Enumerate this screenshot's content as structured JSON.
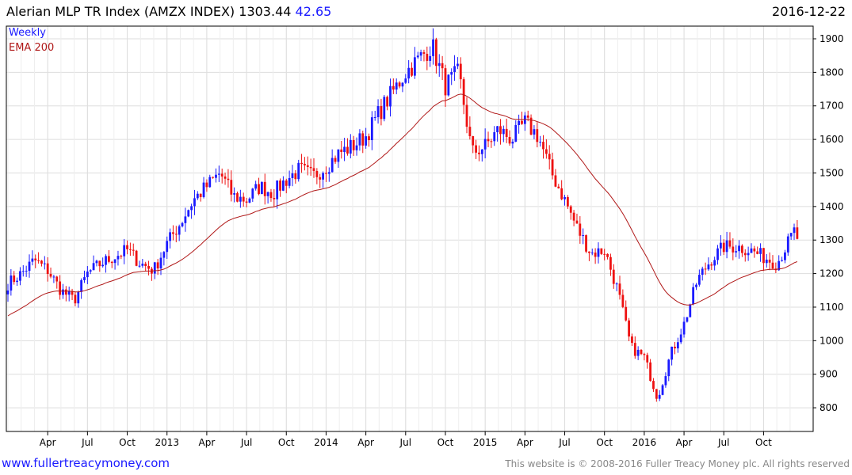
{
  "header": {
    "title": "Alerian MLP TR Index (AMZX INDEX) 1303.44",
    "change": "42.65",
    "date": "2016-12-22"
  },
  "footer": {
    "link": "www.fullertreacymoney.com",
    "copyright": "This website is © 2008-2016 Fuller Treacy Money plc. All rights reserved"
  },
  "colors": {
    "up": "#1a1aff",
    "down": "#ee1111",
    "ema": "#b01818",
    "grid": "#dddddd"
  },
  "chart_data": {
    "type": "candlestick",
    "title": "Alerian MLP TR Index (AMZX INDEX)",
    "legend": [
      "Weekly",
      "EMA 200"
    ],
    "legend_placement": "top-left",
    "ylim": [
      730,
      1920
    ],
    "yticks": [
      800,
      900,
      1000,
      1100,
      1200,
      1300,
      1400,
      1500,
      1600,
      1700,
      1800,
      1900
    ],
    "xticks": [
      {
        "label": "Apr",
        "month": 3
      },
      {
        "label": "Jul",
        "month": 6
      },
      {
        "label": "Oct",
        "month": 9
      },
      {
        "label": "2013",
        "month": 12
      },
      {
        "label": "Apr",
        "month": 15
      },
      {
        "label": "Jul",
        "month": 18
      },
      {
        "label": "Oct",
        "month": 21
      },
      {
        "label": "2014",
        "month": 24
      },
      {
        "label": "Apr",
        "month": 27
      },
      {
        "label": "Jul",
        "month": 30
      },
      {
        "label": "Oct",
        "month": 33
      },
      {
        "label": "2015",
        "month": 36
      },
      {
        "label": "Apr",
        "month": 39
      },
      {
        "label": "Jul",
        "month": 42
      },
      {
        "label": "Oct",
        "month": 45
      },
      {
        "label": "2016",
        "month": 48
      },
      {
        "label": "Apr",
        "month": 51
      },
      {
        "label": "Jul",
        "month": 54
      },
      {
        "label": "Oct",
        "month": 57
      }
    ],
    "start": "2012-01",
    "monthly_close": [
      1170,
      1200,
      1240,
      1210,
      1150,
      1120,
      1200,
      1230,
      1250,
      1270,
      1230,
      1210,
      1290,
      1350,
      1420,
      1460,
      1500,
      1430,
      1420,
      1460,
      1440,
      1480,
      1510,
      1490,
      1520,
      1560,
      1580,
      1610,
      1680,
      1740,
      1800,
      1840,
      1880,
      1760,
      1800,
      1560,
      1580,
      1630,
      1600,
      1650,
      1610,
      1500,
      1420,
      1330,
      1260,
      1270,
      1150,
      980,
      950,
      830,
      960,
      1050,
      1180,
      1240,
      1280,
      1280,
      1270,
      1250,
      1230,
      1303
    ],
    "ema_period_weeks": 40,
    "ema_start": 1070,
    "last_close": 1303.44
  }
}
